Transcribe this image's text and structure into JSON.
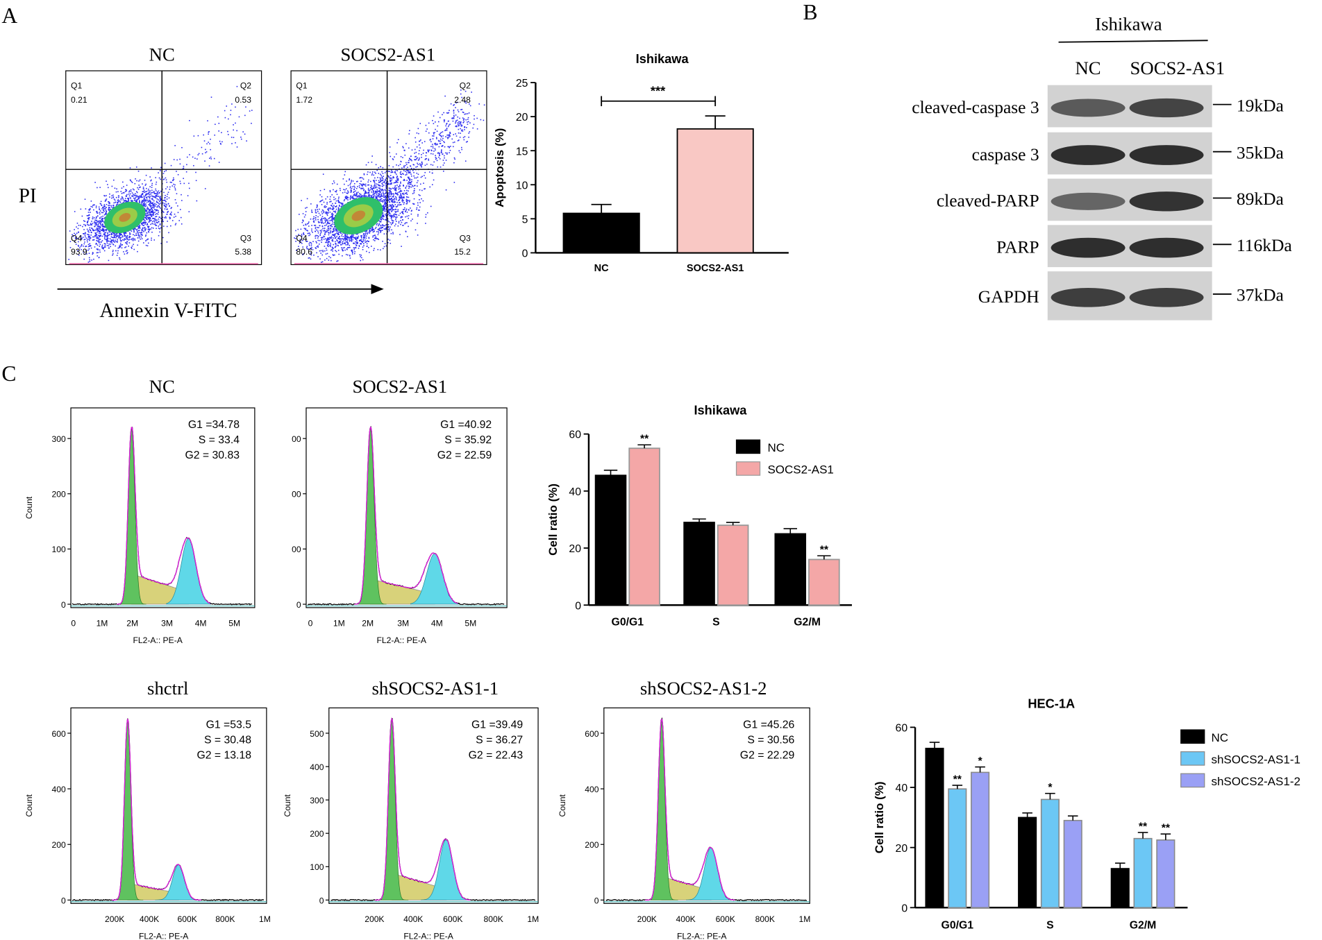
{
  "panels": {
    "A": "A",
    "B": "B",
    "C": "C"
  },
  "panel_a": {
    "plots": [
      {
        "title": "NC",
        "q1_label": "Q1",
        "q1": "0.21",
        "q2_label": "Q2",
        "q2": "0.53",
        "q3_label": "Q3",
        "q3": "5.38",
        "q4_label": "Q4",
        "q4": "93.9"
      },
      {
        "title": "SOCS2-AS1",
        "q1_label": "Q1",
        "q1": "1.72",
        "q2_label": "Q2",
        "q2": "2.48",
        "q3_label": "Q3",
        "q3": "15.2",
        "q4_label": "Q4",
        "q4": "80.6"
      }
    ],
    "y_label": "PI",
    "x_label": "Annexin V-FITC"
  },
  "panel_b": {
    "cell_line": "Ishikawa",
    "lane_labels": [
      "NC",
      "SOCS2-AS1"
    ],
    "bands": [
      {
        "name": "cleaved-caspase 3",
        "size": "19kDa"
      },
      {
        "name": "caspase 3",
        "size": "35kDa"
      },
      {
        "name": "cleaved-PARP",
        "size": "89kDa"
      },
      {
        "name": "PARP",
        "size": "116kDa"
      },
      {
        "name": "GAPDH",
        "size": "37kDa"
      }
    ]
  },
  "panel_c_histograms": {
    "plots": [
      {
        "title": "NC",
        "g1": "G1  =34.78",
        "s": "S = 33.4",
        "g2": "G2  = 30.83"
      },
      {
        "title": "SOCS2-AS1",
        "g1": "G1  =40.92",
        "s": "S = 35.92",
        "g2": "G2  = 22.59"
      },
      {
        "title": "shctrl",
        "g1": "G1  =53.5",
        "s": "S = 30.48",
        "g2": "G2  = 13.18"
      },
      {
        "title": "shSOCS2-AS1-1",
        "g1": "G1  =39.49",
        "s": "S = 36.27",
        "g2": "G2  = 22.43"
      },
      {
        "title": "shSOCS2-AS1-2",
        "g1": "G1  =45.26",
        "s": "S = 30.56",
        "g2": "G2  = 22.29"
      }
    ],
    "y_label": "Count",
    "x_label": "FL2-A:: PE-A",
    "top_x_ticks": [
      "0",
      "1M",
      "2M",
      "3M",
      "4M",
      "5M"
    ],
    "top_y_ticks_nc": [
      "0",
      "100",
      "200",
      "300"
    ],
    "top_y_ticks_socs": [
      "0",
      "00",
      "00",
      "00"
    ],
    "bottom_x_ticks": [
      "200K",
      "400K",
      "600K",
      "800K",
      "1M"
    ],
    "bottom_x_ticks_c": [
      "200K",
      "400K",
      "600K",
      "800K",
      "1M"
    ],
    "bottom_y_ticks_shctrl": [
      "0",
      "200",
      "400",
      "600"
    ],
    "bottom_y_ticks_sh1": [
      "0",
      "100",
      "200",
      "300",
      "400",
      "500"
    ],
    "bottom_y_ticks_sh2": [
      "0",
      "200",
      "400",
      "600"
    ]
  },
  "colors": {
    "black_bar": "#000000",
    "pink_bar": "#f9c8c4",
    "salmon_bar": "#f4a7a7",
    "light_blue_bar": "#6cc7f5",
    "periwinkle_bar": "#9aa0f5",
    "flow_dots": "#2a2af0",
    "g1_fill": "#5fc25f",
    "s_fill": "#d8d27a",
    "g2_fill": "#5fd8e8",
    "fit_line": "#e020e0"
  },
  "chart_data": [
    {
      "type": "bar",
      "title": "Ishikawa",
      "categories": [
        "NC",
        "SOCS2-AS1"
      ],
      "values": [
        5.8,
        18.2
      ],
      "errors": [
        1.3,
        1.9
      ],
      "ylabel": "Apoptosis (%)",
      "xlabel": "",
      "ylim": [
        0,
        25
      ],
      "yticks": [
        "0",
        "5",
        "10",
        "15",
        "20",
        "25"
      ],
      "annotation": "***"
    },
    {
      "type": "bar",
      "title": "Ishikawa",
      "categories": [
        "G0/G1",
        "S",
        "G2/M"
      ],
      "series": [
        {
          "name": "NC",
          "values": [
            45.5,
            29.0,
            25.0
          ],
          "errors": [
            1.8,
            1.2,
            1.8
          ]
        },
        {
          "name": "SOCS2-AS1",
          "values": [
            55.0,
            28.0,
            16.0
          ],
          "errors": [
            1.2,
            1.0,
            1.3
          ]
        }
      ],
      "significance": [
        [
          "",
          ""
        ],
        [
          "",
          ""
        ],
        [
          "",
          "**"
        ]
      ],
      "significance_top": [
        "**",
        "",
        ""
      ],
      "ylabel": "Cell ratio (%)",
      "xlabel": "",
      "ylim": [
        0,
        60
      ],
      "yticks": [
        "0",
        "20",
        "40",
        "60"
      ],
      "legend": "top-right"
    },
    {
      "type": "bar",
      "title": "HEC-1A",
      "categories": [
        "G0/G1",
        "S",
        "G2/M"
      ],
      "series": [
        {
          "name": "NC",
          "values": [
            53.0,
            30.0,
            13.0
          ],
          "errors": [
            2.0,
            1.5,
            1.8
          ]
        },
        {
          "name": "shSOCS2-AS1-1",
          "values": [
            39.5,
            36.0,
            23.0
          ],
          "errors": [
            1.2,
            2.0,
            2.0
          ]
        },
        {
          "name": "shSOCS2-AS1-2",
          "values": [
            45.0,
            29.0,
            22.5
          ],
          "errors": [
            1.8,
            1.5,
            2.0
          ]
        }
      ],
      "significance": [
        [
          "",
          "**",
          "*"
        ],
        [
          "",
          "*",
          ""
        ],
        [
          "",
          "**",
          "**"
        ]
      ],
      "ylabel": "Cell ratio (%)",
      "xlabel": "",
      "ylim": [
        0,
        60
      ],
      "yticks": [
        "0",
        "20",
        "40",
        "60"
      ],
      "legend": "top-right"
    }
  ]
}
